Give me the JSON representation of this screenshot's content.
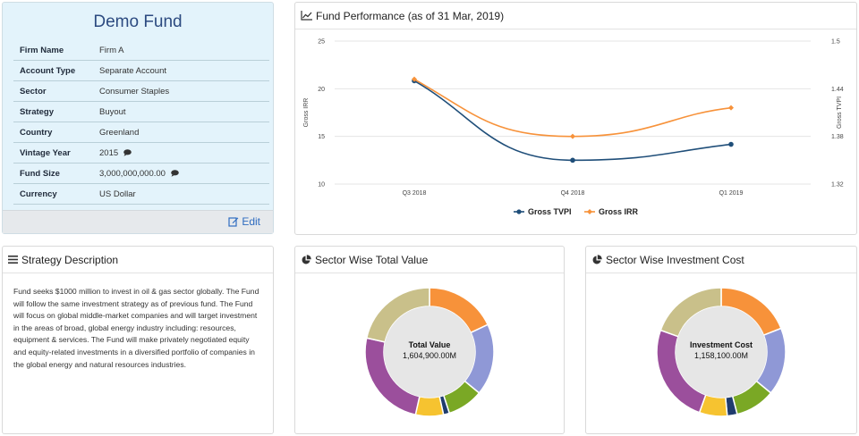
{
  "fund": {
    "title": "Demo Fund",
    "rows": [
      {
        "label": "Firm Name",
        "value": "Firm A",
        "note": false
      },
      {
        "label": "Account Type",
        "value": "Separate Account",
        "note": false
      },
      {
        "label": "Sector",
        "value": "Consumer Staples",
        "note": false
      },
      {
        "label": "Strategy",
        "value": "Buyout",
        "note": false
      },
      {
        "label": "Country",
        "value": "Greenland",
        "note": false
      },
      {
        "label": "Vintage Year",
        "value": "2015",
        "note": true
      },
      {
        "label": "Fund Size",
        "value": "3,000,000,000.00",
        "note": true
      },
      {
        "label": "Currency",
        "value": "US Dollar",
        "note": false
      }
    ],
    "edit_label": "Edit"
  },
  "performance": {
    "title": "Fund Performance (as of 31 Mar, 2019)"
  },
  "strategy": {
    "title": "Strategy Description",
    "text": "Fund seeks $1000 million to invest in oil & gas sector globally. The Fund will follow the same investment strategy as of previous fund. The Fund will focus on global middle-market companies and will target investment in the areas of broad, global energy industry including: resources, equipment & services. The Fund will make privately negotiated equity and equity-related investments in a diversified portfolio of companies in the global energy and natural resources industries."
  },
  "total_value": {
    "title": "Sector Wise Total Value",
    "center_label": "Total Value",
    "center_value": "1,604,900.00M"
  },
  "investment_cost": {
    "title": "Sector Wise Investment Cost",
    "center_label": "Investment Cost",
    "center_value": "1,158,100.00M"
  },
  "colors": {
    "tvpi": "#1f4e79",
    "irr": "#f7923a",
    "accent": "#2e6cc0"
  },
  "chart_data": [
    {
      "type": "line",
      "title": "Fund Performance (as of 31 Mar, 2019)",
      "categories": [
        "Q3 2018",
        "Q4 2018",
        "Q1 2019"
      ],
      "series": [
        {
          "name": "Gross TVPI",
          "axis": "right",
          "values": [
            1.45,
            1.35,
            1.37
          ]
        },
        {
          "name": "Gross IRR",
          "axis": "left",
          "values": [
            21,
            15,
            18
          ]
        }
      ],
      "ylabel": "Gross IRR",
      "ylabel_right": "Gross TVPI",
      "yticks": [
        "25",
        "20",
        "15",
        "10"
      ],
      "yticks_right": [
        "1.5",
        "1.44",
        "1.38",
        "1.32"
      ],
      "ylim": [
        10,
        25
      ],
      "ylim_right": [
        1.32,
        1.5
      ],
      "legend": "bottom"
    },
    {
      "type": "pie",
      "title": "Sector Wise Total Value",
      "slices": [
        {
          "color": "#f7923a",
          "value": 18
        },
        {
          "color": "#8f98d6",
          "value": 18
        },
        {
          "color": "#7aa825",
          "value": 9
        },
        {
          "color": "#1f3c6e",
          "value": 1.5
        },
        {
          "color": "#f6c330",
          "value": 7
        },
        {
          "color": "#9b4f9c",
          "value": 25
        },
        {
          "color": "#c9c08a",
          "value": 21.5
        }
      ]
    },
    {
      "type": "pie",
      "title": "Sector Wise Investment Cost",
      "slices": [
        {
          "color": "#f7923a",
          "value": 19
        },
        {
          "color": "#8f98d6",
          "value": 17
        },
        {
          "color": "#7aa825",
          "value": 10
        },
        {
          "color": "#1f3c6e",
          "value": 2.5
        },
        {
          "color": "#f6c330",
          "value": 7
        },
        {
          "color": "#9b4f9c",
          "value": 25
        },
        {
          "color": "#c9c08a",
          "value": 19.5
        }
      ]
    }
  ]
}
